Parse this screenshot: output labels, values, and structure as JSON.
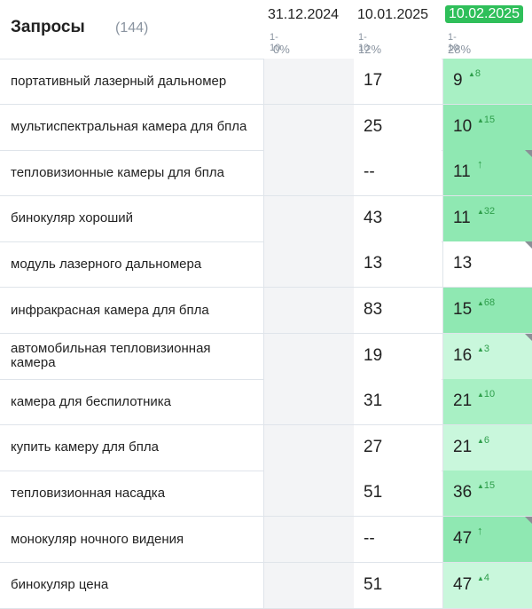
{
  "header": {
    "title": "Запросы",
    "count": "(144)",
    "dates": [
      {
        "date": "31.12.2024",
        "range": "1-10",
        "pct": "0%"
      },
      {
        "date": "10.01.2025",
        "range": "1-10",
        "pct": "12%"
      },
      {
        "date": "10.02.2025",
        "range": "1-10",
        "pct": "28%"
      }
    ]
  },
  "colors": {
    "highlight_date": "#2fbf5a",
    "delta_text": "#2e9e4b",
    "cell_strong": "#8fe8b2",
    "cell_medium": "#a8f0c4",
    "cell_light": "#c9f7dc"
  },
  "rows": [
    {
      "query": "портативный лазерный дальномер",
      "v2": "17",
      "v3": "9",
      "delta": "8",
      "fill": "medium",
      "flag": false
    },
    {
      "query": "мультиспектральная камера для бпла",
      "v2": "25",
      "v3": "10",
      "delta": "15",
      "fill": "strong",
      "flag": false
    },
    {
      "query": "тепловизионные камеры для бпла",
      "v2": "--",
      "v3": "11",
      "delta": "↑",
      "fill": "strong",
      "flag": true
    },
    {
      "query": "бинокуляр хороший",
      "v2": "43",
      "v3": "11",
      "delta": "32",
      "fill": "strong",
      "flag": false
    },
    {
      "query": "модуль лазерного дальномера",
      "v2": "13",
      "v3": "13",
      "delta": "",
      "fill": "none",
      "flag": true
    },
    {
      "query": "инфракрасная камера для бпла",
      "v2": "83",
      "v3": "15",
      "delta": "68",
      "fill": "strong",
      "flag": false
    },
    {
      "query": "автомобильная тепловизионная камера",
      "v2": "19",
      "v3": "16",
      "delta": "3",
      "fill": "light",
      "flag": true
    },
    {
      "query": "камера для беспилотника",
      "v2": "31",
      "v3": "21",
      "delta": "10",
      "fill": "medium",
      "flag": false
    },
    {
      "query": "купить камеру для бпла",
      "v2": "27",
      "v3": "21",
      "delta": "6",
      "fill": "light",
      "flag": false
    },
    {
      "query": "тепловизионная насадка",
      "v2": "51",
      "v3": "36",
      "delta": "15",
      "fill": "medium",
      "flag": false
    },
    {
      "query": "монокуляр ночного видения",
      "v2": "--",
      "v3": "47",
      "delta": "↑",
      "fill": "strong",
      "flag": true
    },
    {
      "query": "бинокуляр цена",
      "v2": "51",
      "v3": "47",
      "delta": "4",
      "fill": "light",
      "flag": false
    }
  ]
}
